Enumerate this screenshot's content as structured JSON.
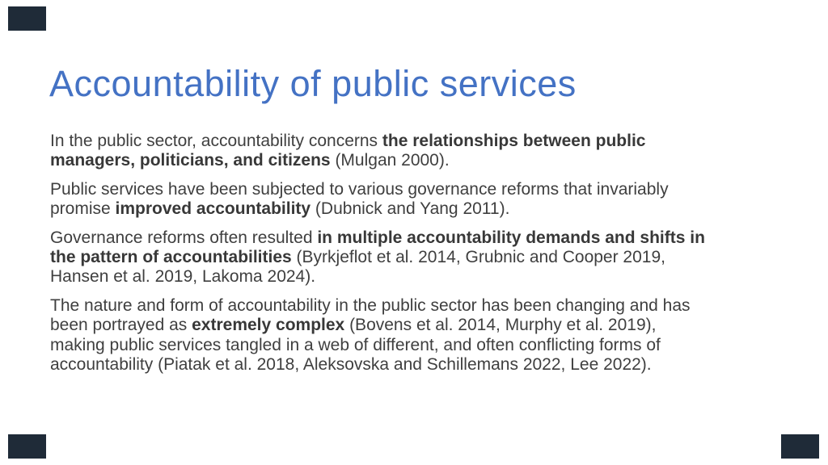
{
  "slide": {
    "title": "Accountability of public services",
    "colors": {
      "background": "#FFFFFF",
      "title": "#4472C4",
      "text": "#3F3F3F",
      "text_bold": "#383838",
      "corner_accent": "#1F2B38"
    },
    "paragraphs": [
      {
        "lines": [
          [
            {
              "t": "In the public sector, accountability concerns ",
              "b": false
            },
            {
              "t": "the relationships between public",
              "b": true
            }
          ],
          [
            {
              "t": "managers, politicians, and citizens",
              "b": true
            },
            {
              "t": " (Mulgan 2000).",
              "b": false
            }
          ]
        ]
      },
      {
        "lines": [
          [
            {
              "t": "Public services have been subjected to various governance reforms that invariably",
              "b": false
            }
          ],
          [
            {
              "t": "promise ",
              "b": false
            },
            {
              "t": "improved accountability",
              "b": true
            },
            {
              "t": " (Dubnick and Yang 2011).",
              "b": false
            }
          ]
        ]
      },
      {
        "lines": [
          [
            {
              "t": "Governance reforms often resulted ",
              "b": false
            },
            {
              "t": "in multiple accountability demands and shifts in",
              "b": true
            }
          ],
          [
            {
              "t": "the pattern of accountabilities",
              "b": true
            },
            {
              "t": " (Byrkjeflot et al. 2014, Grubnic and Cooper 2019,",
              "b": false
            }
          ],
          [
            {
              "t": "Hansen et al. 2019, Lakoma 2024).",
              "b": false
            }
          ]
        ]
      },
      {
        "lines": [
          [
            {
              "t": "The nature and form of accountability in the public sector has been changing and has",
              "b": false
            }
          ],
          [
            {
              "t": "been portrayed as ",
              "b": false
            },
            {
              "t": "extremely complex",
              "b": true
            },
            {
              "t": " (Bovens et al. 2014, Murphy et al. 2019),",
              "b": false
            }
          ],
          [
            {
              "t": "making public services tangled in a web of different, and often conflicting forms of",
              "b": false
            }
          ],
          [
            {
              "t": "accountability (Piatak et al. 2018, Aleksovska and Schillemans 2022, Lee 2022).",
              "b": false
            }
          ]
        ]
      }
    ]
  }
}
